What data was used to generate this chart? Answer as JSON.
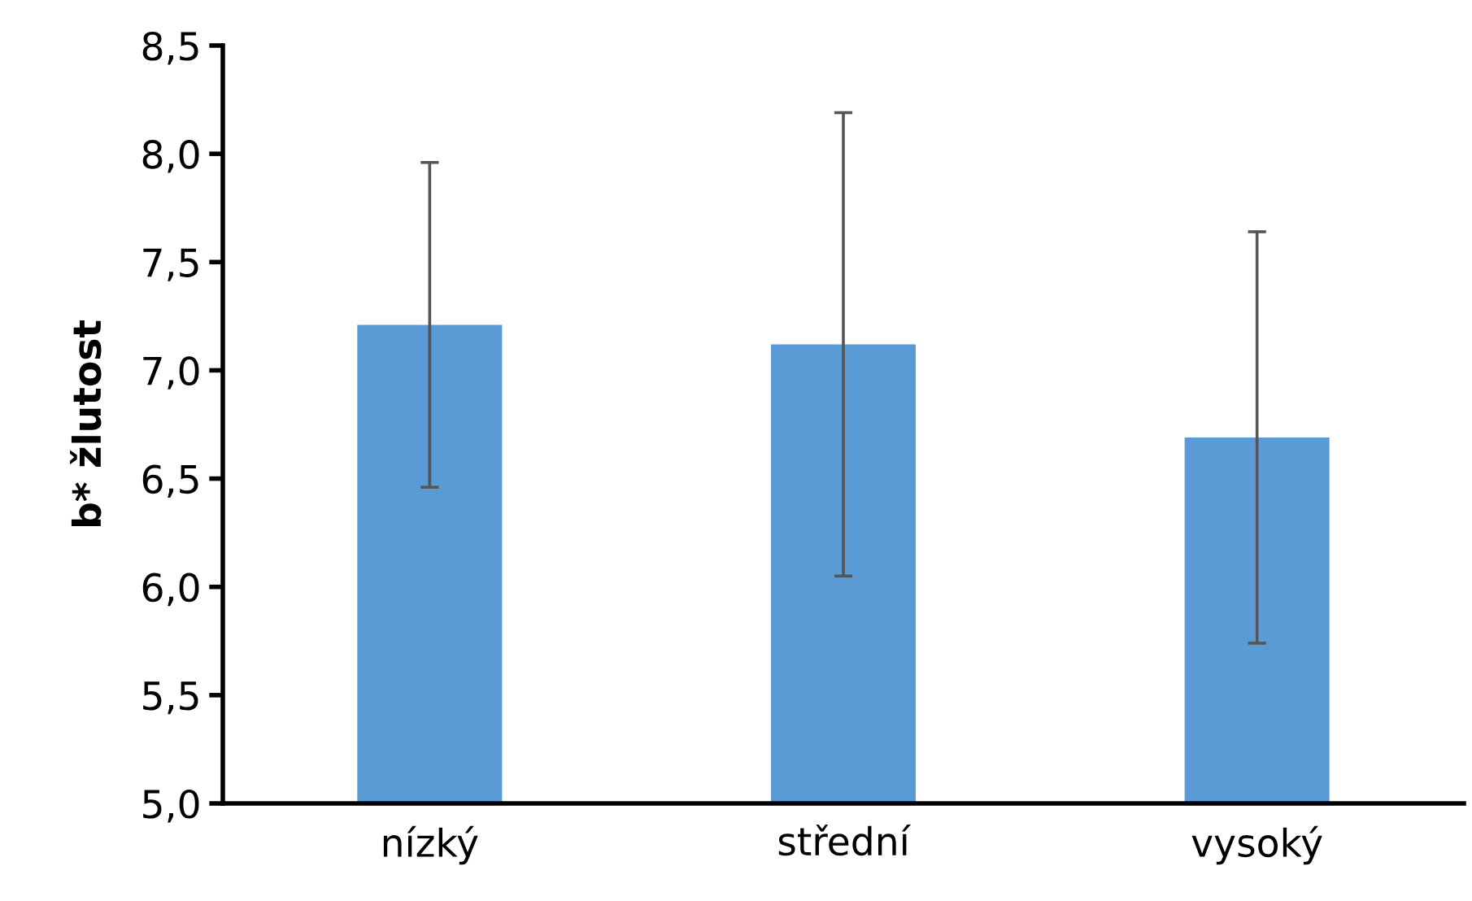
{
  "chart_data": {
    "type": "bar",
    "ylabel": "b* žlutost",
    "categories": [
      "nízký",
      "střední",
      "vysoký"
    ],
    "values": [
      7.21,
      7.12,
      6.69
    ],
    "errors": [
      0.75,
      1.07,
      0.95
    ],
    "color": "#5b9bd5",
    "ylim": [
      5.0,
      8.5
    ],
    "yticks": [
      {
        "value": 5.0,
        "label": "5,0"
      },
      {
        "value": 5.5,
        "label": "5,5"
      },
      {
        "value": 6.0,
        "label": "6,0"
      },
      {
        "value": 6.5,
        "label": "6,5"
      },
      {
        "value": 7.0,
        "label": "7,0"
      },
      {
        "value": 7.5,
        "label": "7,5"
      },
      {
        "value": 8.0,
        "label": "8,0"
      },
      {
        "value": 8.5,
        "label": "8,5"
      }
    ],
    "grid": false
  }
}
